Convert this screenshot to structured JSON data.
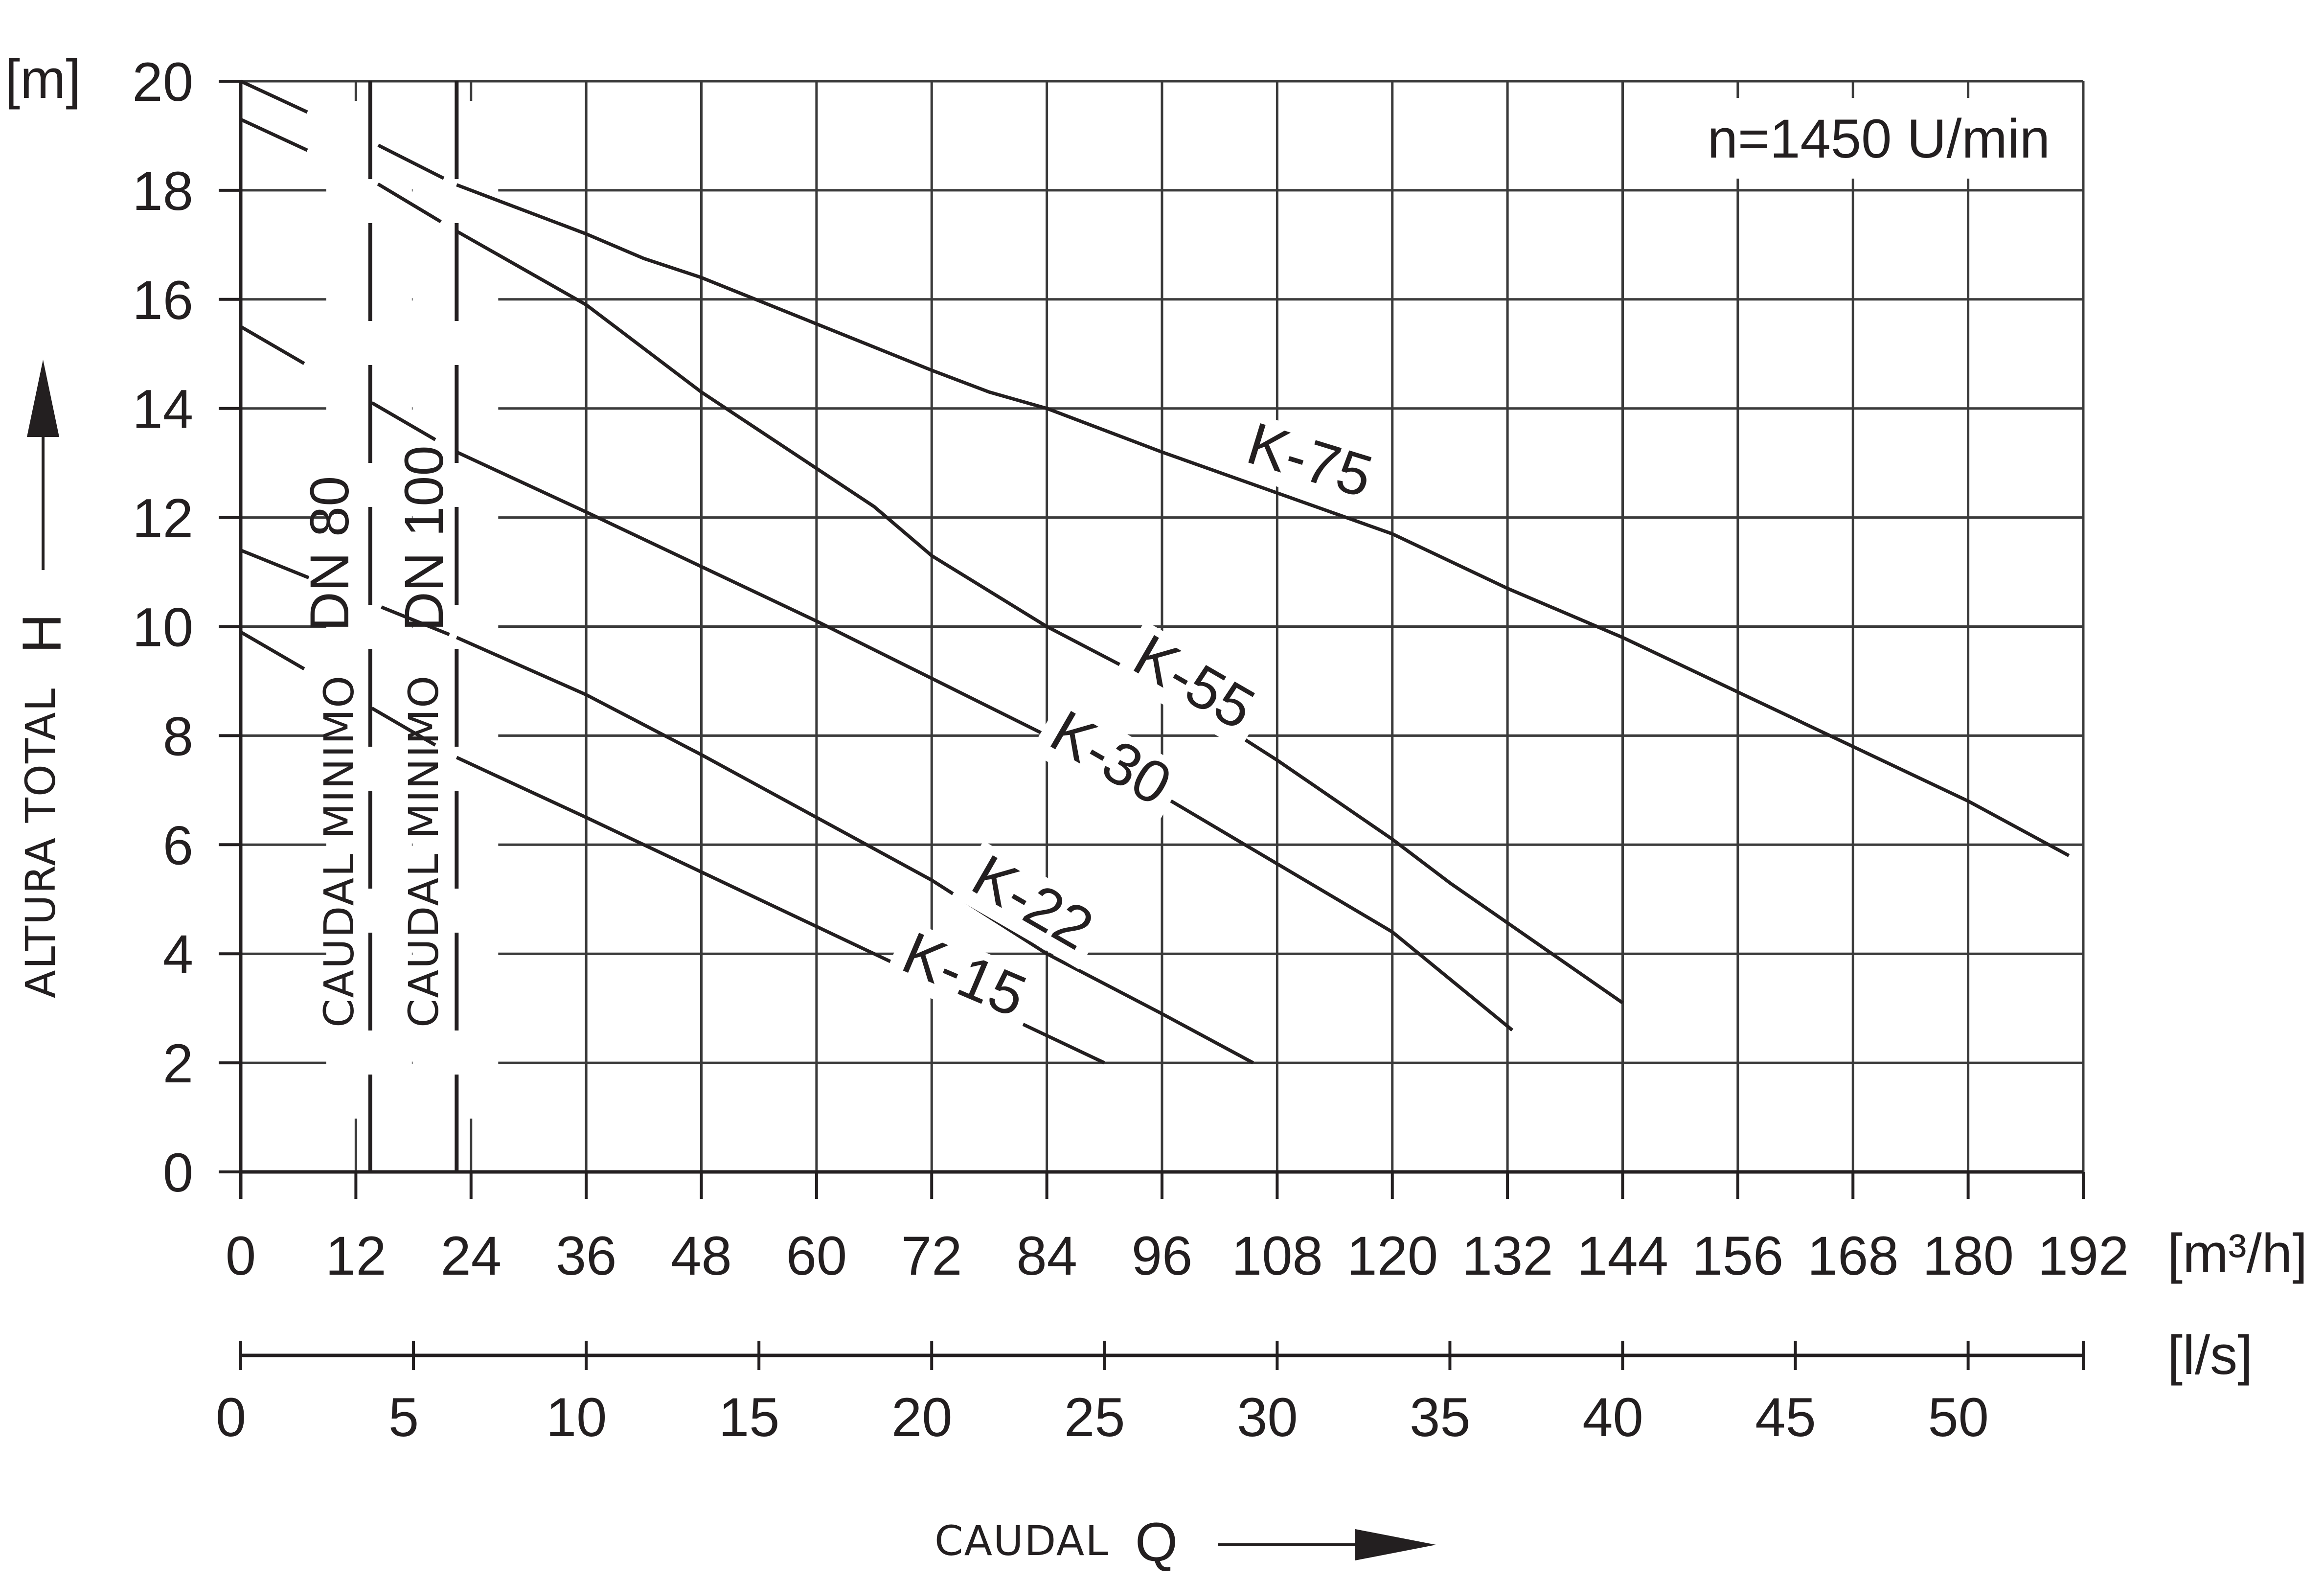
{
  "chart_data": {
    "type": "line",
    "annotation": "n=1450 U/min",
    "x_ticks": [
      "0",
      "12",
      "24",
      "36",
      "48",
      "60",
      "72",
      "84",
      "96",
      "108",
      "120",
      "132",
      "144",
      "156",
      "168",
      "180",
      "192"
    ],
    "x_unit": "[m³/h]",
    "x2_ticks": [
      "0",
      "5",
      "10",
      "15",
      "20",
      "25",
      "30",
      "35",
      "40",
      "45",
      "50"
    ],
    "x2_unit": "[l/s]",
    "xlabel": "CAUDAL",
    "xlabel_symbol": "Q",
    "y_ticks": [
      "0",
      "2",
      "4",
      "6",
      "8",
      "10",
      "12",
      "14",
      "16",
      "18",
      "20"
    ],
    "y_unit": "[m]",
    "ylabel": "ALTURA TOTAL",
    "ylabel_symbol": "H",
    "xlim": [
      0,
      192
    ],
    "ylim": [
      0,
      20
    ],
    "grid": true,
    "min_flow_lines": [
      {
        "label": "DN 80",
        "caption": "CAUDAL MINIMO",
        "x": 13.5
      },
      {
        "label": "DN 100",
        "caption": "CAUDAL MINIMO",
        "x": 22.5
      }
    ],
    "series": [
      {
        "name": "K-75",
        "x": [
          0,
          13.5,
          22.5,
          36,
          42,
          48,
          60,
          72,
          78,
          84,
          96,
          108,
          120,
          132,
          144,
          156,
          168,
          180,
          190.5
        ],
        "y": [
          20,
          18.9,
          18.1,
          17.2,
          16.75,
          16.4,
          15.55,
          14.7,
          14.3,
          14.0,
          13.2,
          12.45,
          11.7,
          10.7,
          9.8,
          8.8,
          7.8,
          6.8,
          5.8
        ]
      },
      {
        "name": "K-55",
        "x": [
          0,
          13.5,
          22.5,
          36,
          48,
          60,
          66,
          72,
          84,
          96,
          108,
          120,
          126,
          144
        ],
        "y": [
          19.3,
          18.2,
          17.25,
          15.9,
          14.3,
          12.9,
          12.2,
          11.3,
          10.0,
          8.9,
          7.55,
          6.1,
          5.3,
          3.1
        ]
      },
      {
        "name": "K-30",
        "x": [
          0,
          22.5,
          36,
          48,
          60,
          72,
          84,
          96,
          108,
          120,
          132.5
        ],
        "y": [
          15.5,
          13.2,
          12.1,
          11.1,
          10.1,
          9.05,
          8.0,
          6.9,
          5.65,
          4.4,
          2.6
        ]
      },
      {
        "name": "K-22",
        "x": [
          0,
          22.5,
          36,
          48,
          60,
          72,
          84,
          96,
          105.5
        ],
        "y": [
          11.4,
          9.8,
          8.75,
          7.65,
          6.5,
          5.35,
          4.0,
          2.9,
          2.0
        ]
      },
      {
        "name": "K-15",
        "x": [
          0,
          22.5,
          36,
          48,
          60,
          72,
          84,
          90
        ],
        "y": [
          9.9,
          7.6,
          6.5,
          5.5,
          4.5,
          3.5,
          2.5,
          2.0
        ]
      }
    ]
  },
  "colors": {
    "ink": "#231f20",
    "grid": "#3a3a3a",
    "background": "#ffffff"
  }
}
